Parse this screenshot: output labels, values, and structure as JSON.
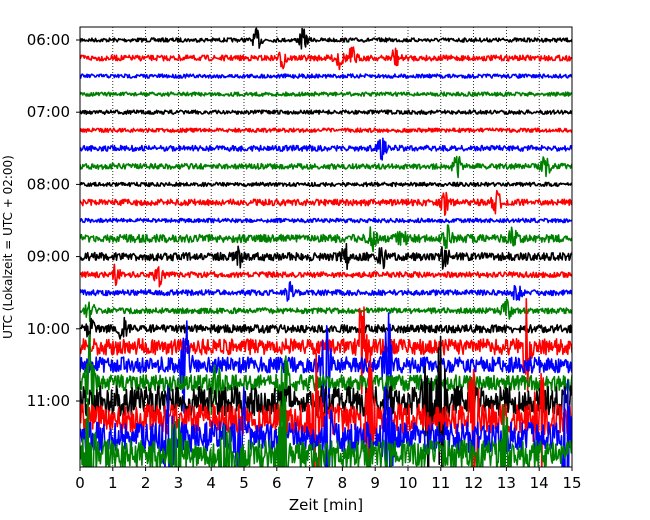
{
  "chart_data": {
    "type": "line",
    "xlabel": "Zeit  [min]",
    "ylabel": "UTC (Lokalzeit = UTC + 02:00)",
    "xlim": [
      0,
      15
    ],
    "x_ticks": [
      "0",
      "1",
      "2",
      "3",
      "4",
      "5",
      "6",
      "7",
      "8",
      "9",
      "10",
      "11",
      "12",
      "13",
      "14",
      "15"
    ],
    "y_ticks": [
      "06:00",
      "07:00",
      "08:00",
      "09:00",
      "10:00",
      "11:00"
    ],
    "grid": "vertical dotted at each minute",
    "trace_interval_minutes": 15,
    "first_trace": "06:00",
    "colors_cycle": [
      "#000000",
      "#ff0000",
      "#0000ff",
      "#008000"
    ],
    "traces": [
      {
        "start": "06:00",
        "color": "#000000",
        "level": "quiet",
        "events_min": [
          5.4,
          6.8
        ]
      },
      {
        "start": "06:15",
        "color": "#ff0000",
        "level": "low",
        "events_min": [
          6.2,
          7.9,
          8.3,
          9.6
        ]
      },
      {
        "start": "06:30",
        "color": "#0000ff",
        "level": "quiet",
        "events_min": []
      },
      {
        "start": "06:45",
        "color": "#008000",
        "level": "quiet",
        "events_min": []
      },
      {
        "start": "07:00",
        "color": "#000000",
        "level": "quiet",
        "events_min": []
      },
      {
        "start": "07:15",
        "color": "#ff0000",
        "level": "quiet",
        "events_min": []
      },
      {
        "start": "07:30",
        "color": "#0000ff",
        "level": "low",
        "events_min": [
          9.2
        ]
      },
      {
        "start": "07:45",
        "color": "#008000",
        "level": "low",
        "events_min": [
          11.5,
          14.2
        ]
      },
      {
        "start": "08:00",
        "color": "#000000",
        "level": "quiet",
        "events_min": []
      },
      {
        "start": "08:15",
        "color": "#ff0000",
        "level": "event",
        "events_min": [
          11.1,
          12.7
        ]
      },
      {
        "start": "08:30",
        "color": "#0000ff",
        "level": "quiet",
        "events_min": []
      },
      {
        "start": "08:45",
        "color": "#008000",
        "level": "moderate",
        "events_min": [
          8.9,
          9.8,
          11.2,
          13.2
        ]
      },
      {
        "start": "09:00",
        "color": "#000000",
        "level": "moderate",
        "events_min": [
          4.9,
          8.1,
          9.2,
          11.1
        ]
      },
      {
        "start": "09:15",
        "color": "#ff0000",
        "level": "low",
        "events_min": [
          1.1,
          2.4
        ]
      },
      {
        "start": "09:30",
        "color": "#0000ff",
        "level": "low",
        "events_min": [
          6.4,
          13.3
        ]
      },
      {
        "start": "09:45",
        "color": "#008000",
        "level": "low",
        "events_min": [
          0.3,
          13.0
        ]
      },
      {
        "start": "10:00",
        "color": "#000000",
        "level": "moderate",
        "events_min": [
          0.3,
          1.3
        ]
      },
      {
        "start": "10:15",
        "color": "#ff0000",
        "level": "high",
        "events_min": [
          8.6,
          13.6
        ]
      },
      {
        "start": "10:30",
        "color": "#0000ff",
        "level": "high",
        "events_min": [
          3.2,
          7.5,
          9.4
        ]
      },
      {
        "start": "10:45",
        "color": "#008000",
        "level": "high",
        "events_min": [
          0.3,
          4.1,
          6.2
        ]
      },
      {
        "start": "11:00",
        "color": "#000000",
        "level": "very high",
        "events_min": [
          10.6,
          11.0
        ]
      },
      {
        "start": "11:15",
        "color": "#ff0000",
        "level": "very high",
        "events_min": [
          7.2,
          8.8,
          12.0,
          14.0
        ]
      },
      {
        "start": "11:30",
        "color": "#0000ff",
        "level": "very high",
        "events_min": [
          2.7,
          4.9,
          7.5,
          9.4,
          14.8
        ]
      },
      {
        "start": "11:45",
        "color": "#008000",
        "level": "very high",
        "events_min": [
          0.3,
          2.9,
          4.4,
          6.2,
          12.9
        ]
      }
    ]
  }
}
